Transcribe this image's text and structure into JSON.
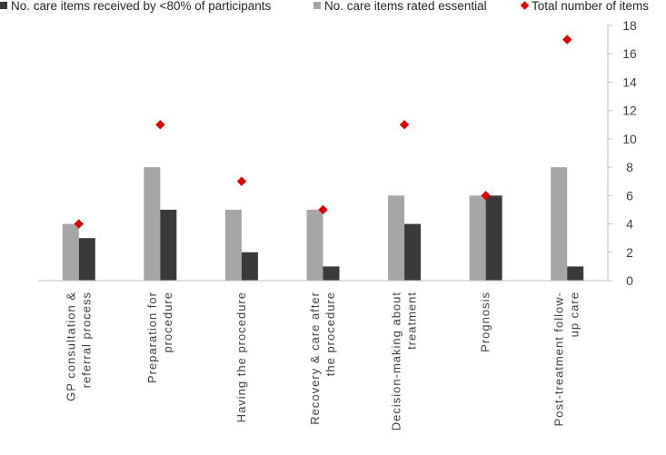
{
  "chart_data": {
    "type": "bar",
    "categories": [
      [
        "GP consultation &",
        "referral process"
      ],
      [
        "Preparation for",
        "procedure"
      ],
      [
        "Having the procedure"
      ],
      [
        "Recovery & care after",
        "the procedure"
      ],
      [
        "Decision-making about",
        "treatment"
      ],
      [
        "Prognosis"
      ],
      [
        "Post-treatment follow-",
        "up care"
      ]
    ],
    "series": [
      {
        "name": "No. care items received by <80% of participants",
        "kind": "bar",
        "color": "#3a3a3a",
        "values": [
          3,
          5,
          2,
          1,
          4,
          6,
          1
        ]
      },
      {
        "name": "No. care items rated essential",
        "kind": "bar",
        "color": "#a6a6a6",
        "values": [
          4,
          8,
          5,
          5,
          6,
          6,
          8
        ]
      },
      {
        "name": "Total number of items",
        "kind": "marker",
        "color": "#e00000",
        "values": [
          4,
          11,
          7,
          5,
          11,
          6,
          17
        ]
      }
    ],
    "legend_order": [
      0,
      1,
      2
    ],
    "bar_order_in_group": [
      1,
      0
    ],
    "yaxis": {
      "position": "right",
      "ylim": [
        0,
        18
      ],
      "ticks": [
        0,
        2,
        4,
        6,
        8,
        10,
        12,
        14,
        16,
        18
      ]
    },
    "grid": false,
    "legend": "top"
  }
}
